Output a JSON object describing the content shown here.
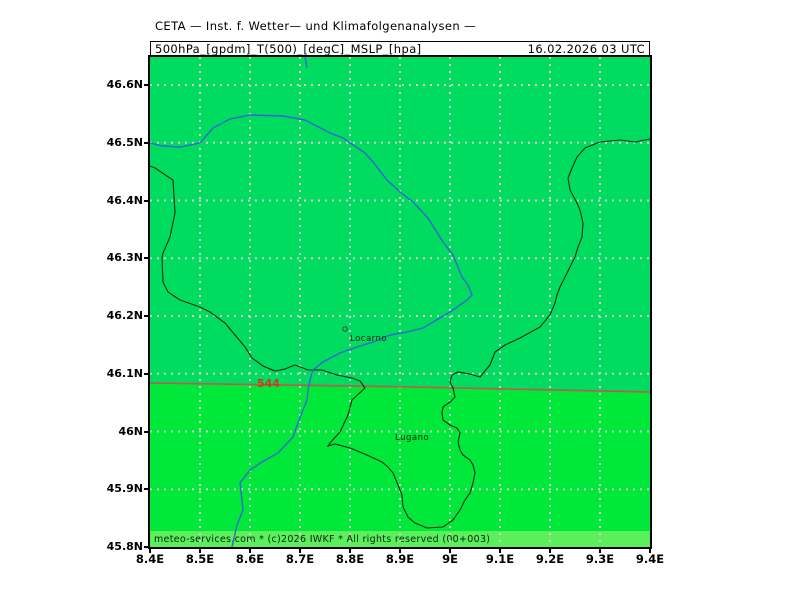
{
  "header": {
    "title": "CETA — Inst. f. Wetter— und Klimafolgenanalysen —",
    "product": "500hPa_[gpdm]_T(500)_[degC]_MSLP_[hpa]",
    "valid": "16.02.2026 03 UTC"
  },
  "axes": {
    "lat_labels": [
      "46.6N",
      "46.5N",
      "46.4N",
      "46.3N",
      "46.2N",
      "46.1N",
      "46N",
      "45.9N",
      "45.8N"
    ],
    "lon_labels": [
      "8.4E",
      "8.5E",
      "8.6E",
      "8.7E",
      "8.8E",
      "8.9E",
      "9E",
      "9.1E",
      "9.2E",
      "9.3E",
      "9.4E"
    ]
  },
  "map": {
    "contour_label": "544",
    "cities": [
      {
        "name": "Locarno"
      },
      {
        "name": "Lugano"
      }
    ],
    "watermark": "meteo-services.com * (c)2026 IWKF * All rights reserved (00+003)"
  },
  "colors": {
    "fill_upper": "#00dc60",
    "fill_lower": "#00e93a",
    "band": "#5cef5c",
    "grid": "#d8cccc",
    "border": "#0b2d10",
    "river": "#3566cf",
    "contour": "#c2584a",
    "contour_label": "#d93420",
    "city_marker": "#3a4a3a",
    "city_text": "#08240c"
  }
}
